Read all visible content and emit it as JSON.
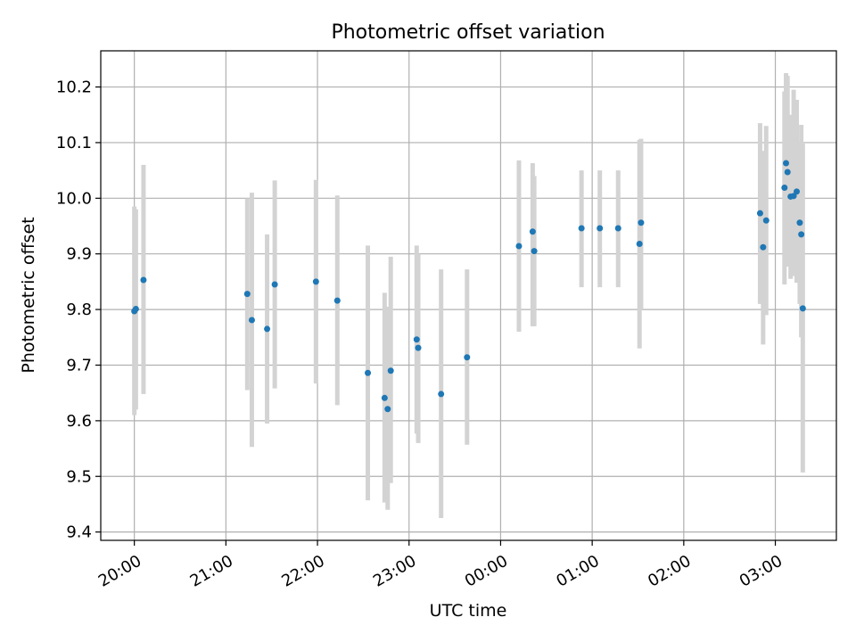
{
  "chart_data": {
    "type": "scatter",
    "title": "Photometric offset variation",
    "xlabel": "UTC time",
    "ylabel": "Photometric offset",
    "x_ticks": [
      "20:00",
      "21:00",
      "22:00",
      "23:00",
      "00:00",
      "01:00",
      "02:00",
      "03:00"
    ],
    "y_ticks": [
      "9.4",
      "9.5",
      "9.6",
      "9.7",
      "9.8",
      "9.9",
      "10.0",
      "10.1",
      "10.2"
    ],
    "xlim": [
      "19:38",
      "03:40"
    ],
    "ylim": [
      9.385,
      10.265
    ],
    "grid": true,
    "point_color": "#1f77b4",
    "errorbar_color": "#d3d3d3",
    "points": [
      {
        "x": "20:00",
        "y": 9.797,
        "lo": 9.61,
        "hi": 9.985
      },
      {
        "x": "20:01",
        "y": 9.801,
        "lo": 9.62,
        "hi": 9.98
      },
      {
        "x": "20:06",
        "y": 9.853,
        "lo": 9.648,
        "hi": 10.06
      },
      {
        "x": "21:14",
        "y": 9.828,
        "lo": 9.655,
        "hi": 10.0
      },
      {
        "x": "21:17",
        "y": 9.781,
        "lo": 9.553,
        "hi": 10.01
      },
      {
        "x": "21:27",
        "y": 9.765,
        "lo": 9.595,
        "hi": 9.935
      },
      {
        "x": "21:32",
        "y": 9.845,
        "lo": 9.658,
        "hi": 10.032
      },
      {
        "x": "21:59",
        "y": 9.85,
        "lo": 9.667,
        "hi": 10.033
      },
      {
        "x": "22:13",
        "y": 9.816,
        "lo": 9.628,
        "hi": 10.005
      },
      {
        "x": "22:33",
        "y": 9.686,
        "lo": 9.457,
        "hi": 9.915
      },
      {
        "x": "22:44",
        "y": 9.641,
        "lo": 9.453,
        "hi": 9.83
      },
      {
        "x": "22:46",
        "y": 9.621,
        "lo": 9.44,
        "hi": 9.805
      },
      {
        "x": "22:48",
        "y": 9.69,
        "lo": 9.488,
        "hi": 9.895
      },
      {
        "x": "23:05",
        "y": 9.746,
        "lo": 9.577,
        "hi": 9.915
      },
      {
        "x": "23:06",
        "y": 9.731,
        "lo": 9.56,
        "hi": 9.9
      },
      {
        "x": "23:21",
        "y": 9.648,
        "lo": 9.425,
        "hi": 9.872
      },
      {
        "x": "23:38",
        "y": 9.714,
        "lo": 9.557,
        "hi": 9.872
      },
      {
        "x": "00:12",
        "y": 9.914,
        "lo": 9.76,
        "hi": 10.068
      },
      {
        "x": "00:21",
        "y": 9.94,
        "lo": 9.77,
        "hi": 10.063
      },
      {
        "x": "00:22",
        "y": 9.905,
        "lo": 9.77,
        "hi": 10.04
      },
      {
        "x": "00:53",
        "y": 9.946,
        "lo": 9.84,
        "hi": 10.05
      },
      {
        "x": "01:05",
        "y": 9.946,
        "lo": 9.84,
        "hi": 10.05
      },
      {
        "x": "01:17",
        "y": 9.946,
        "lo": 9.84,
        "hi": 10.05
      },
      {
        "x": "01:31",
        "y": 9.918,
        "lo": 9.73,
        "hi": 10.105
      },
      {
        "x": "01:32",
        "y": 9.956,
        "lo": 9.8,
        "hi": 10.107
      },
      {
        "x": "02:50",
        "y": 9.973,
        "lo": 9.81,
        "hi": 10.135
      },
      {
        "x": "02:52",
        "y": 9.912,
        "lo": 9.737,
        "hi": 10.085
      },
      {
        "x": "02:54",
        "y": 9.96,
        "lo": 9.79,
        "hi": 10.13
      },
      {
        "x": "03:06",
        "y": 10.019,
        "lo": 9.845,
        "hi": 10.192
      },
      {
        "x": "03:07",
        "y": 10.063,
        "lo": 9.9,
        "hi": 10.225
      },
      {
        "x": "03:08",
        "y": 10.047,
        "lo": 9.877,
        "hi": 10.22
      },
      {
        "x": "03:10",
        "y": 10.003,
        "lo": 9.855,
        "hi": 10.15
      },
      {
        "x": "03:12",
        "y": 10.004,
        "lo": 9.86,
        "hi": 10.195
      },
      {
        "x": "03:14",
        "y": 10.012,
        "lo": 9.848,
        "hi": 10.177
      },
      {
        "x": "03:16",
        "y": 9.956,
        "lo": 9.81,
        "hi": 10.102
      },
      {
        "x": "03:17",
        "y": 9.935,
        "lo": 9.75,
        "hi": 10.132
      },
      {
        "x": "03:18",
        "y": 9.802,
        "lo": 9.507,
        "hi": 10.098
      }
    ]
  }
}
